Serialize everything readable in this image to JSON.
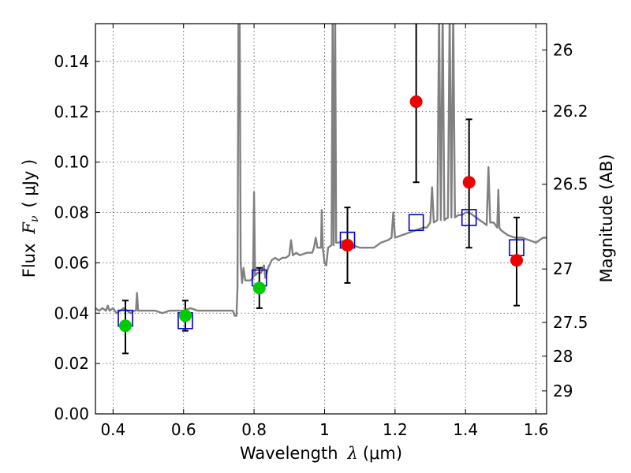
{
  "chart_data": {
    "type": "scatter",
    "title": "",
    "xlabel_prefix": "Wavelength",
    "xlabel_math": "λ",
    "xlabel_unit": "(μm)",
    "ylabel_prefix": "Flux",
    "ylabel_math": "F",
    "ylabel_math_sub": "ν",
    "ylabel_unit": "( μJy )",
    "y2label": "Magnitude (AB)",
    "xlim": [
      0.35,
      1.63
    ],
    "ylim": [
      0.0,
      0.155
    ],
    "grid": true,
    "x_ticks": [
      {
        "v": 0.4,
        "label": "0.4"
      },
      {
        "v": 0.6,
        "label": "0.6"
      },
      {
        "v": 0.8,
        "label": "0.8"
      },
      {
        "v": 1.0,
        "label": "1"
      },
      {
        "v": 1.2,
        "label": "1.2"
      },
      {
        "v": 1.4,
        "label": "1.4"
      },
      {
        "v": 1.6,
        "label": "1.6"
      }
    ],
    "y_ticks": [
      {
        "v": 0.0,
        "label": "0.00"
      },
      {
        "v": 0.02,
        "label": "0.02"
      },
      {
        "v": 0.04,
        "label": "0.04"
      },
      {
        "v": 0.06,
        "label": "0.06"
      },
      {
        "v": 0.08,
        "label": "0.08"
      },
      {
        "v": 0.1,
        "label": "0.10"
      },
      {
        "v": 0.12,
        "label": "0.12"
      },
      {
        "v": 0.14,
        "label": "0.14"
      }
    ],
    "y2_ticks": [
      {
        "label": "26",
        "mag": 26.0
      },
      {
        "label": "26.2",
        "mag": 26.2
      },
      {
        "label": "26.5",
        "mag": 26.5
      },
      {
        "label": "27",
        "mag": 27.0
      },
      {
        "label": "27.5",
        "mag": 27.5
      },
      {
        "label": "28",
        "mag": 28.0
      },
      {
        "label": "29",
        "mag": 29.0
      }
    ],
    "series": [
      {
        "kind": "spectrum",
        "color": "#808080",
        "points": [
          [
            0.35,
            0.042
          ],
          [
            0.36,
            0.041
          ],
          [
            0.37,
            0.042
          ],
          [
            0.38,
            0.041
          ],
          [
            0.385,
            0.043
          ],
          [
            0.39,
            0.041
          ],
          [
            0.4,
            0.042
          ],
          [
            0.41,
            0.04
          ],
          [
            0.42,
            0.041
          ],
          [
            0.43,
            0.042
          ],
          [
            0.44,
            0.041
          ],
          [
            0.45,
            0.04
          ],
          [
            0.46,
            0.041
          ],
          [
            0.465,
            0.041
          ],
          [
            0.468,
            0.048
          ],
          [
            0.471,
            0.041
          ],
          [
            0.48,
            0.041
          ],
          [
            0.5,
            0.041
          ],
          [
            0.52,
            0.041
          ],
          [
            0.54,
            0.04
          ],
          [
            0.56,
            0.041
          ],
          [
            0.58,
            0.041
          ],
          [
            0.6,
            0.041
          ],
          [
            0.62,
            0.042
          ],
          [
            0.64,
            0.041
          ],
          [
            0.66,
            0.041
          ],
          [
            0.68,
            0.041
          ],
          [
            0.7,
            0.041
          ],
          [
            0.72,
            0.041
          ],
          [
            0.74,
            0.041
          ],
          [
            0.745,
            0.039
          ],
          [
            0.75,
            0.039
          ],
          [
            0.753,
            0.05
          ],
          [
            0.756,
            0.16
          ],
          [
            0.759,
            0.16
          ],
          [
            0.762,
            0.06
          ],
          [
            0.766,
            0.052
          ],
          [
            0.77,
            0.058
          ],
          [
            0.775,
            0.053
          ],
          [
            0.78,
            0.053
          ],
          [
            0.79,
            0.053
          ],
          [
            0.797,
            0.054
          ],
          [
            0.8,
            0.088
          ],
          [
            0.803,
            0.055
          ],
          [
            0.81,
            0.056
          ],
          [
            0.82,
            0.056
          ],
          [
            0.828,
            0.059
          ],
          [
            0.832,
            0.054
          ],
          [
            0.84,
            0.058
          ],
          [
            0.85,
            0.061
          ],
          [
            0.86,
            0.062
          ],
          [
            0.87,
            0.061
          ],
          [
            0.88,
            0.062
          ],
          [
            0.89,
            0.062
          ],
          [
            0.9,
            0.063
          ],
          [
            0.905,
            0.069
          ],
          [
            0.91,
            0.063
          ],
          [
            0.92,
            0.064
          ],
          [
            0.93,
            0.063
          ],
          [
            0.95,
            0.064
          ],
          [
            0.965,
            0.064
          ],
          [
            0.97,
            0.066
          ],
          [
            0.975,
            0.07
          ],
          [
            0.98,
            0.066
          ],
          [
            0.99,
            0.066
          ],
          [
            0.992,
            0.081
          ],
          [
            0.995,
            0.066
          ],
          [
            1.0,
            0.06
          ],
          [
            1.005,
            0.059
          ],
          [
            1.01,
            0.066
          ],
          [
            1.02,
            0.067
          ],
          [
            1.023,
            0.16
          ],
          [
            1.026,
            0.067
          ],
          [
            1.03,
            0.16
          ],
          [
            1.033,
            0.068
          ],
          [
            1.04,
            0.068
          ],
          [
            1.06,
            0.069
          ],
          [
            1.08,
            0.067
          ],
          [
            1.1,
            0.066
          ],
          [
            1.12,
            0.066
          ],
          [
            1.14,
            0.066
          ],
          [
            1.16,
            0.068
          ],
          [
            1.18,
            0.069
          ],
          [
            1.19,
            0.07
          ],
          [
            1.195,
            0.08
          ],
          [
            1.2,
            0.07
          ],
          [
            1.22,
            0.071
          ],
          [
            1.24,
            0.072
          ],
          [
            1.26,
            0.073
          ],
          [
            1.28,
            0.074
          ],
          [
            1.29,
            0.074
          ],
          [
            1.3,
            0.076
          ],
          [
            1.305,
            0.09
          ],
          [
            1.31,
            0.076
          ],
          [
            1.32,
            0.077
          ],
          [
            1.325,
            0.16
          ],
          [
            1.33,
            0.077
          ],
          [
            1.335,
            0.16
          ],
          [
            1.34,
            0.077
          ],
          [
            1.35,
            0.078
          ],
          [
            1.355,
            0.16
          ],
          [
            1.36,
            0.078
          ],
          [
            1.365,
            0.16
          ],
          [
            1.37,
            0.078
          ],
          [
            1.38,
            0.079
          ],
          [
            1.39,
            0.079
          ],
          [
            1.4,
            0.08
          ],
          [
            1.41,
            0.08
          ],
          [
            1.42,
            0.079
          ],
          [
            1.43,
            0.078
          ],
          [
            1.44,
            0.077
          ],
          [
            1.45,
            0.076
          ],
          [
            1.46,
            0.075
          ],
          [
            1.465,
            0.098
          ],
          [
            1.47,
            0.076
          ],
          [
            1.48,
            0.076
          ],
          [
            1.49,
            0.074
          ],
          [
            1.493,
            0.089
          ],
          [
            1.496,
            0.074
          ],
          [
            1.5,
            0.073
          ],
          [
            1.52,
            0.071
          ],
          [
            1.54,
            0.07
          ],
          [
            1.56,
            0.07
          ],
          [
            1.58,
            0.069
          ],
          [
            1.6,
            0.068
          ],
          [
            1.61,
            0.069
          ],
          [
            1.62,
            0.07
          ],
          [
            1.63,
            0.07
          ]
        ]
      },
      {
        "kind": "model-squares",
        "color": "#0000cc",
        "points": [
          [
            0.435,
            0.038
          ],
          [
            0.605,
            0.037
          ],
          [
            0.815,
            0.054
          ],
          [
            1.065,
            0.069
          ],
          [
            1.26,
            0.076
          ],
          [
            1.41,
            0.078
          ],
          [
            1.545,
            0.066
          ]
        ]
      },
      {
        "kind": "observed-points",
        "points": [
          {
            "x": 0.435,
            "y": 0.035,
            "err": [
              0.024,
              0.045
            ],
            "color": "#00cc00"
          },
          {
            "x": 0.605,
            "y": 0.039,
            "err": [
              0.033,
              0.045
            ],
            "color": "#00cc00"
          },
          {
            "x": 0.815,
            "y": 0.05,
            "err": [
              0.042,
              0.058
            ],
            "color": "#00cc00"
          },
          {
            "x": 1.065,
            "y": 0.067,
            "err": [
              0.052,
              0.082
            ],
            "color": "#ee0000"
          },
          {
            "x": 1.26,
            "y": 0.124,
            "err": [
              0.092,
              0.16
            ],
            "color": "#ee0000"
          },
          {
            "x": 1.41,
            "y": 0.092,
            "err": [
              0.066,
              0.117
            ],
            "color": "#ee0000"
          },
          {
            "x": 1.545,
            "y": 0.061,
            "err": [
              0.043,
              0.078
            ],
            "color": "#ee0000"
          }
        ]
      }
    ]
  }
}
